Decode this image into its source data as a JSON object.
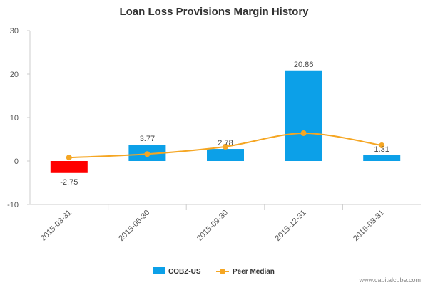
{
  "chart_data": {
    "type": "bar",
    "title": "Loan Loss Provisions Margin History",
    "categories": [
      "2015-03-31",
      "2015-06-30",
      "2015-09-30",
      "2015-12-31",
      "2016-03-31"
    ],
    "series": [
      {
        "name": "COBZ-US",
        "kind": "bar",
        "values": [
          -2.75,
          3.77,
          2.78,
          20.86,
          1.31
        ],
        "labels": [
          "-2.75",
          "3.77",
          "2.78",
          "20.86",
          "1.31"
        ],
        "color": "#0ca0e8",
        "negative_color": "#ff0000"
      },
      {
        "name": "Peer Median",
        "kind": "line",
        "values": [
          0.8,
          1.6,
          3.3,
          6.4,
          3.6
        ],
        "color": "#f5a623"
      }
    ],
    "yticks": [
      "30",
      "20",
      "10",
      "0",
      "-10"
    ],
    "ylim": [
      -10,
      30
    ],
    "xlabel": "",
    "ylabel": "",
    "legend_position": "bottom-center"
  },
  "credit": "www.capitalcube.com"
}
